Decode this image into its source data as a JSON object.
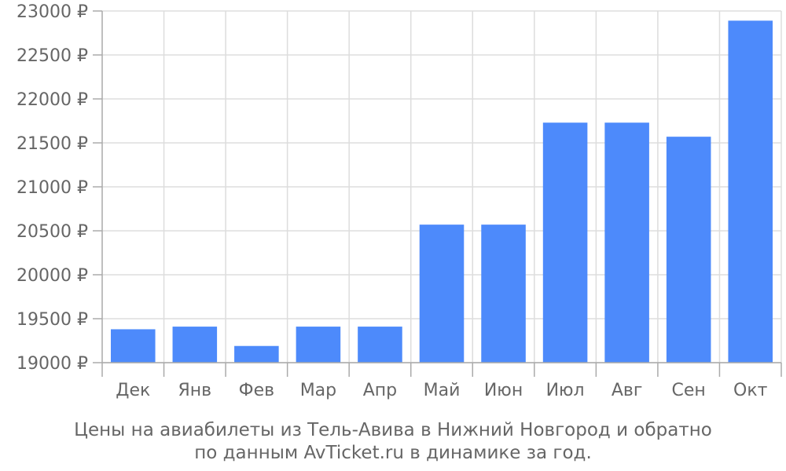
{
  "chart_data": {
    "type": "bar",
    "categories": [
      "Дек",
      "Янв",
      "Фев",
      "Мар",
      "Апр",
      "Май",
      "Июн",
      "Июл",
      "Авг",
      "Сен",
      "Окт"
    ],
    "values": [
      19380,
      19410,
      19190,
      19410,
      19410,
      20570,
      20570,
      21730,
      21730,
      21570,
      22890
    ],
    "yticks": [
      "19000 ₽",
      "19500 ₽",
      "20000 ₽",
      "20500 ₽",
      "21000 ₽",
      "21500 ₽",
      "22000 ₽",
      "22500 ₽",
      "23000 ₽"
    ],
    "ylim": [
      19000,
      23000
    ],
    "grid": true,
    "bar_color": "#4d8afb",
    "grid_color": "#dddddd",
    "axis_color": "#aaaaaa",
    "text_color": "#666666"
  },
  "caption": {
    "line1": "Цены на авиабилеты из Тель-Авива в Нижний Новгород и обратно",
    "line2": "по данным AvTicket.ru в динамике за год."
  }
}
